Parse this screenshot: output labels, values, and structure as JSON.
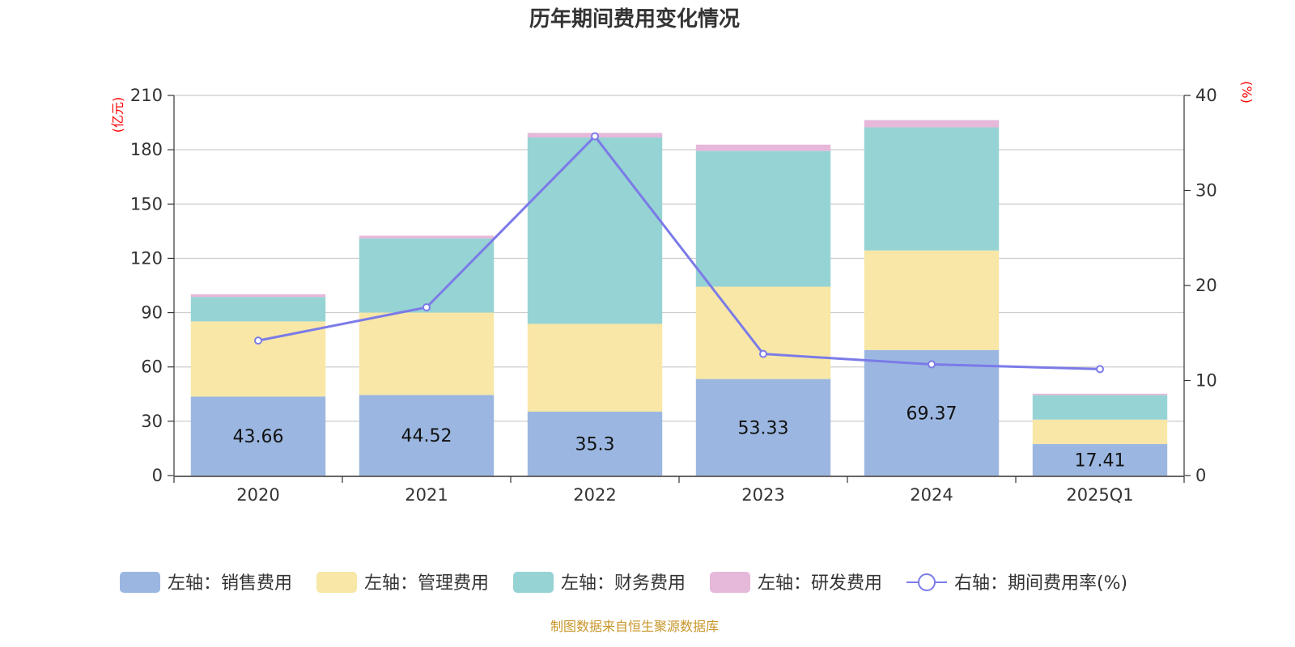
{
  "chart_data": {
    "type": "bar",
    "stacked": true,
    "title": "历年期间费用变化情况",
    "categories": [
      "2020",
      "2021",
      "2022",
      "2023",
      "2024",
      "2025Q1"
    ],
    "y_left": {
      "unit": "(亿元)",
      "ylim": [
        0,
        210
      ],
      "ticks": [
        "0",
        "30",
        "60",
        "90",
        "120",
        "150",
        "180",
        "210"
      ]
    },
    "y_right": {
      "unit": "(%)",
      "ylim": [
        0,
        40
      ],
      "ticks": [
        "0",
        "10",
        "20",
        "30",
        "40"
      ]
    },
    "series": [
      {
        "name": "左轴：销售费用",
        "axis": "left",
        "color": "#9bb7e1",
        "values": [
          43.66,
          44.52,
          35.3,
          53.33,
          69.37,
          17.41
        ],
        "labels": [
          "43.66",
          "44.52",
          "35.3",
          "53.33",
          "69.37",
          "17.41"
        ]
      },
      {
        "name": "左轴：管理费用",
        "axis": "left",
        "color": "#f8e7a6",
        "values": [
          41.5,
          45.5,
          48.5,
          51.0,
          55.0,
          13.5
        ]
      },
      {
        "name": "左轴：财务费用",
        "axis": "left",
        "color": "#96d3d4",
        "values": [
          13.5,
          41.0,
          103.0,
          75.0,
          68.0,
          13.5
        ]
      },
      {
        "name": "左轴：研发费用",
        "axis": "left",
        "color": "#e6b8da",
        "values": [
          1.5,
          1.5,
          2.5,
          3.5,
          4.0,
          0.8
        ]
      },
      {
        "name": "右轴：期间费用率(%)",
        "axis": "right",
        "type": "line",
        "color": "#7b7be8",
        "values": [
          14.2,
          17.7,
          35.7,
          12.8,
          11.7,
          11.2
        ]
      }
    ],
    "grid": true,
    "legend_position": "bottom"
  },
  "source": "制图数据来自恒生聚源数据库"
}
